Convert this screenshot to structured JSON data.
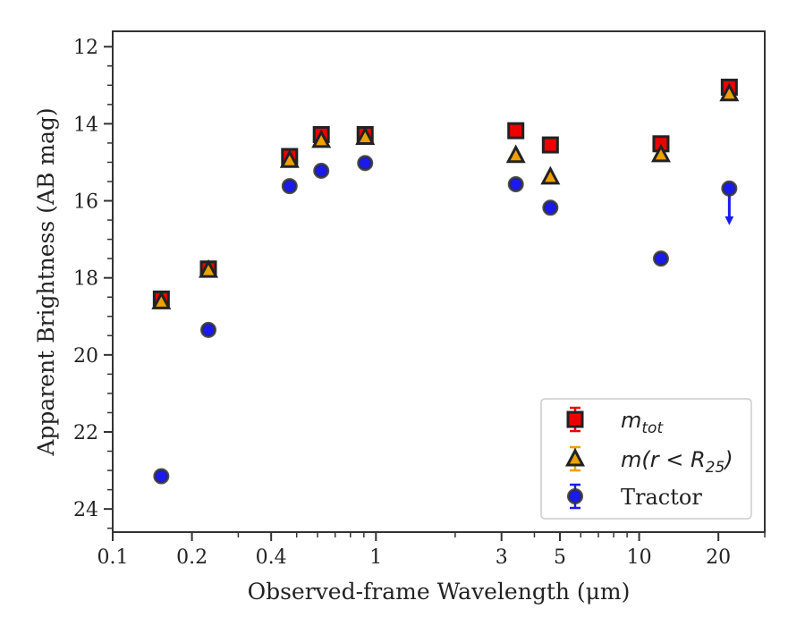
{
  "chart_data": {
    "type": "scatter",
    "xlabel": "Observed-frame Wavelength (μm)",
    "ylabel": "Apparent Brightness (AB mag)",
    "x_scale": "log",
    "xlim": [
      0.1,
      30
    ],
    "ylim": [
      24.6,
      11.6
    ],
    "y_inverted": true,
    "x_ticks": [
      0.1,
      0.2,
      0.4,
      1,
      3,
      5,
      10,
      20
    ],
    "x_tick_labels": [
      "0.1",
      "0.2",
      "0.4",
      "1",
      "3",
      "5",
      "10",
      "20"
    ],
    "y_ticks": [
      12,
      14,
      16,
      18,
      20,
      22,
      24
    ],
    "y_tick_labels": [
      "12",
      "14",
      "16",
      "18",
      "20",
      "22",
      "24"
    ],
    "grid": false,
    "legend_position": "bottom-right",
    "series": [
      {
        "name": "m_tot",
        "label_main": "m",
        "label_sub": "tot",
        "marker": "square",
        "color": "#ee0000",
        "edge_color": "#222222",
        "x": [
          0.153,
          0.231,
          0.47,
          0.62,
          0.91,
          3.4,
          4.6,
          12.1,
          22.0
        ],
        "y": [
          18.55,
          17.77,
          14.85,
          14.28,
          14.28,
          14.18,
          14.55,
          14.52,
          13.05
        ]
      },
      {
        "name": "m(r < R25)",
        "label_main": "m(r < R",
        "label_sub": "25",
        "label_end": ")",
        "marker": "triangle",
        "color": "#f0a000",
        "edge_color": "#222222",
        "x": [
          0.153,
          0.231,
          0.47,
          0.62,
          0.91,
          3.4,
          4.6,
          12.1,
          22.0
        ],
        "y": [
          18.62,
          17.8,
          14.95,
          14.43,
          14.35,
          14.82,
          15.38,
          14.8,
          13.22
        ]
      },
      {
        "name": "Tractor",
        "marker": "circle",
        "color": "#1a1aee",
        "edge_color": "#333333",
        "x": [
          0.153,
          0.231,
          0.47,
          0.62,
          0.91,
          3.4,
          4.6,
          12.1,
          22.0
        ],
        "y": [
          23.15,
          19.35,
          15.62,
          15.22,
          15.02,
          15.57,
          16.18,
          17.5,
          15.68
        ],
        "upper_limit": [
          false,
          false,
          false,
          false,
          false,
          false,
          false,
          false,
          true
        ]
      }
    ]
  }
}
